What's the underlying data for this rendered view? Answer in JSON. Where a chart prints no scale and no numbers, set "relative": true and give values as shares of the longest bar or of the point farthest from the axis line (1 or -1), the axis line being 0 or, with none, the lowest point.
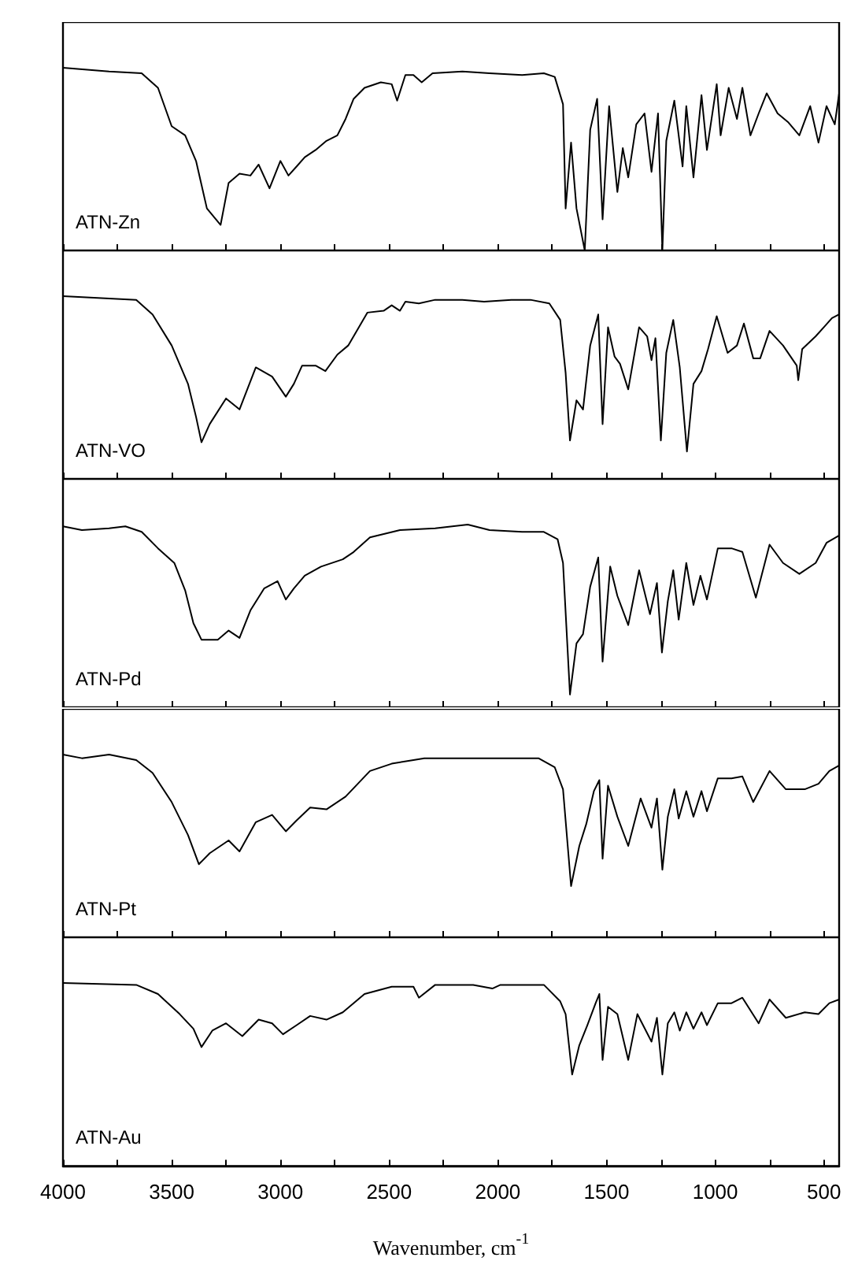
{
  "chart_data": [
    {
      "type": "line",
      "relative": true,
      "tick_labels": false,
      "xlim": [
        4000,
        430
      ],
      "xticks": [
        4000,
        {
          "value": 3750,
          "label": null
        },
        3500,
        {
          "value": 3250,
          "label": null
        },
        3000,
        {
          "value": 2750,
          "label": null
        },
        2500,
        {
          "value": 2250,
          "label": null
        },
        2000,
        {
          "value": 1750,
          "label": null
        },
        1500,
        {
          "value": 1250,
          "label": null
        },
        1000,
        {
          "value": 750,
          "label": null
        },
        500
      ],
      "x": [
        4000,
        3788,
        3638,
        3563,
        3500,
        3438,
        3388,
        3338,
        3275,
        3238,
        3188,
        3138,
        3100,
        3050,
        3000,
        2963,
        2925,
        2888,
        2838,
        2788,
        2738,
        2700,
        2663,
        2613,
        2538,
        2488,
        2463,
        2425,
        2388,
        2350,
        2300,
        2163,
        2038,
        1888,
        1788,
        1738,
        1700,
        1688,
        1663,
        1638,
        1600,
        1575,
        1543,
        1518,
        1488,
        1450,
        1425,
        1400,
        1363,
        1325,
        1293,
        1263,
        1243,
        1225,
        1188,
        1150,
        1133,
        1100,
        1063,
        1038,
        993,
        975,
        938,
        900,
        875,
        838,
        800,
        763,
        713,
        663,
        613,
        563,
        525,
        488,
        450,
        430
      ],
      "series": [
        {
          "name": "ATN-Zn",
          "color": "#000000",
          "values": [
            1.0,
            0.98,
            0.97,
            0.89,
            0.68,
            0.63,
            0.49,
            0.23,
            0.14,
            0.37,
            0.42,
            0.41,
            0.47,
            0.34,
            0.49,
            0.41,
            0.46,
            0.51,
            0.55,
            0.6,
            0.63,
            0.72,
            0.83,
            0.89,
            0.92,
            0.91,
            0.82,
            0.96,
            0.96,
            0.92,
            0.97,
            0.98,
            0.97,
            0.96,
            0.97,
            0.95,
            0.8,
            0.23,
            0.59,
            0.23,
            0.0,
            0.66,
            0.83,
            0.17,
            0.79,
            0.32,
            0.56,
            0.4,
            0.69,
            0.75,
            0.43,
            0.75,
            0.0,
            0.6,
            0.82,
            0.46,
            0.79,
            0.4,
            0.85,
            0.55,
            0.91,
            0.63,
            0.89,
            0.72,
            0.89,
            0.63,
            0.75,
            0.86,
            0.75,
            0.7,
            0.63,
            0.79,
            0.59,
            0.79,
            0.69,
            0.86
          ]
        }
      ]
    },
    {
      "type": "line",
      "relative": true,
      "tick_labels": false,
      "xlim": [
        4000,
        430
      ],
      "xticks": [
        4000,
        {
          "value": 3750,
          "label": null
        },
        3500,
        {
          "value": 3250,
          "label": null
        },
        3000,
        {
          "value": 2750,
          "label": null
        },
        2500,
        {
          "value": 2250,
          "label": null
        },
        2000,
        {
          "value": 1750,
          "label": null
        },
        1500,
        {
          "value": 1250,
          "label": null
        },
        1000,
        {
          "value": 750,
          "label": null
        },
        500
      ],
      "x": [
        4000,
        3663,
        3588,
        3500,
        3425,
        3388,
        3363,
        3325,
        3250,
        3188,
        3113,
        3038,
        2975,
        2938,
        2900,
        2838,
        2793,
        2738,
        2688,
        2600,
        2525,
        2488,
        2450,
        2425,
        2363,
        2288,
        2163,
        2063,
        1938,
        1850,
        1763,
        1713,
        1688,
        1668,
        1638,
        1608,
        1575,
        1538,
        1518,
        1493,
        1463,
        1438,
        1400,
        1350,
        1313,
        1293,
        1275,
        1250,
        1225,
        1193,
        1163,
        1130,
        1100,
        1063,
        1033,
        993,
        943,
        900,
        868,
        825,
        793,
        750,
        688,
        625,
        618,
        600,
        538,
        500,
        463,
        430
      ],
      "series": [
        {
          "name": "ATN-VO",
          "color": "#000000",
          "values": [
            1.0,
            0.98,
            0.9,
            0.73,
            0.52,
            0.34,
            0.2,
            0.3,
            0.44,
            0.38,
            0.61,
            0.56,
            0.45,
            0.52,
            0.62,
            0.62,
            0.59,
            0.68,
            0.73,
            0.91,
            0.92,
            0.95,
            0.92,
            0.97,
            0.96,
            0.98,
            0.98,
            0.97,
            0.98,
            0.98,
            0.96,
            0.87,
            0.58,
            0.21,
            0.43,
            0.38,
            0.73,
            0.9,
            0.3,
            0.83,
            0.67,
            0.63,
            0.49,
            0.83,
            0.78,
            0.65,
            0.77,
            0.21,
            0.69,
            0.87,
            0.61,
            0.15,
            0.52,
            0.59,
            0.71,
            0.89,
            0.69,
            0.73,
            0.85,
            0.66,
            0.66,
            0.81,
            0.73,
            0.62,
            0.54,
            0.71,
            0.78,
            0.83,
            0.88,
            0.9
          ]
        }
      ]
    },
    {
      "type": "line",
      "relative": true,
      "tick_labels": false,
      "xlim": [
        4000,
        430
      ],
      "xticks": [
        4000,
        {
          "value": 3750,
          "label": null
        },
        3500,
        {
          "value": 3250,
          "label": null
        },
        3000,
        {
          "value": 2750,
          "label": null
        },
        2500,
        {
          "value": 2250,
          "label": null
        },
        2000,
        {
          "value": 1750,
          "label": null
        },
        1500,
        {
          "value": 1250,
          "label": null
        },
        1000,
        {
          "value": 750,
          "label": null
        },
        500
      ],
      "x": [
        4000,
        3913,
        3788,
        3713,
        3638,
        3563,
        3488,
        3438,
        3400,
        3363,
        3288,
        3238,
        3188,
        3138,
        3075,
        3013,
        2975,
        2938,
        2888,
        2813,
        2713,
        2663,
        2588,
        2450,
        2288,
        2138,
        2038,
        1888,
        1788,
        1725,
        1700,
        1668,
        1638,
        1608,
        1575,
        1538,
        1518,
        1483,
        1450,
        1400,
        1350,
        1300,
        1268,
        1245,
        1218,
        1193,
        1168,
        1133,
        1100,
        1068,
        1038,
        988,
        925,
        875,
        813,
        750,
        688,
        613,
        538,
        488,
        430
      ],
      "series": [
        {
          "name": "ATN-Pd",
          "color": "#000000",
          "values": [
            0.99,
            0.97,
            0.98,
            0.99,
            0.96,
            0.87,
            0.79,
            0.64,
            0.46,
            0.37,
            0.37,
            0.42,
            0.38,
            0.53,
            0.65,
            0.69,
            0.59,
            0.65,
            0.72,
            0.77,
            0.81,
            0.85,
            0.93,
            0.97,
            0.98,
            1.0,
            0.97,
            0.96,
            0.96,
            0.92,
            0.79,
            0.07,
            0.35,
            0.4,
            0.66,
            0.82,
            0.25,
            0.77,
            0.61,
            0.45,
            0.75,
            0.51,
            0.68,
            0.3,
            0.58,
            0.75,
            0.48,
            0.79,
            0.56,
            0.72,
            0.59,
            0.87,
            0.87,
            0.85,
            0.6,
            0.89,
            0.79,
            0.73,
            0.79,
            0.9,
            0.94
          ]
        }
      ]
    },
    {
      "type": "line",
      "relative": true,
      "tick_labels": false,
      "xlim": [
        4000,
        430
      ],
      "xticks": [
        4000,
        {
          "value": 3750,
          "label": null
        },
        3500,
        {
          "value": 3250,
          "label": null
        },
        3000,
        {
          "value": 2750,
          "label": null
        },
        2500,
        {
          "value": 2250,
          "label": null
        },
        2000,
        {
          "value": 1750,
          "label": null
        },
        1500,
        {
          "value": 1250,
          "label": null
        },
        1000,
        {
          "value": 750,
          "label": null
        },
        500
      ],
      "x": [
        4000,
        3913,
        3788,
        3663,
        3588,
        3500,
        3425,
        3375,
        3325,
        3238,
        3188,
        3113,
        3038,
        2975,
        2925,
        2863,
        2788,
        2700,
        2588,
        2488,
        2388,
        2338,
        2163,
        1813,
        1738,
        1700,
        1663,
        1625,
        1593,
        1558,
        1533,
        1518,
        1493,
        1450,
        1400,
        1343,
        1293,
        1268,
        1243,
        1218,
        1188,
        1168,
        1133,
        1100,
        1063,
        1038,
        988,
        925,
        875,
        825,
        750,
        675,
        588,
        525,
        475,
        430
      ],
      "series": [
        {
          "name": "ATN-Pt",
          "color": "#000000",
          "values": [
            1.0,
            0.98,
            1.0,
            0.97,
            0.9,
            0.74,
            0.56,
            0.4,
            0.46,
            0.53,
            0.47,
            0.63,
            0.67,
            0.58,
            0.64,
            0.71,
            0.7,
            0.77,
            0.91,
            0.95,
            0.97,
            0.98,
            0.98,
            0.98,
            0.93,
            0.81,
            0.28,
            0.5,
            0.62,
            0.8,
            0.86,
            0.43,
            0.83,
            0.66,
            0.5,
            0.76,
            0.6,
            0.76,
            0.37,
            0.66,
            0.81,
            0.65,
            0.8,
            0.66,
            0.8,
            0.69,
            0.87,
            0.87,
            0.88,
            0.74,
            0.91,
            0.81,
            0.81,
            0.84,
            0.91,
            0.94
          ]
        }
      ]
    },
    {
      "type": "line",
      "relative": true,
      "tick_labels": "x",
      "xlabel": "Wavenumber, cm$^{-1}$",
      "xlim": [
        4000,
        430
      ],
      "xticks": [
        4000,
        {
          "value": 3750,
          "label": null
        },
        3500,
        {
          "value": 3250,
          "label": null
        },
        3000,
        {
          "value": 2750,
          "label": null
        },
        2500,
        {
          "value": 2250,
          "label": null
        },
        2000,
        {
          "value": 1750,
          "label": null
        },
        1500,
        {
          "value": 1250,
          "label": null
        },
        1000,
        {
          "value": 750,
          "label": null
        },
        500
      ],
      "x": [
        4000,
        3663,
        3563,
        3463,
        3400,
        3363,
        3313,
        3250,
        3175,
        3100,
        3038,
        2988,
        2925,
        2863,
        2788,
        2713,
        2613,
        2488,
        2388,
        2363,
        2288,
        2113,
        2025,
        1988,
        1788,
        1713,
        1688,
        1658,
        1625,
        1588,
        1550,
        1533,
        1518,
        1493,
        1450,
        1400,
        1358,
        1293,
        1268,
        1243,
        1218,
        1188,
        1163,
        1133,
        1100,
        1063,
        1038,
        988,
        925,
        875,
        800,
        750,
        675,
        588,
        525,
        475,
        430
      ],
      "series": [
        {
          "name": "ATN-Au",
          "color": "#000000",
          "values": [
            1.0,
            0.99,
            0.94,
            0.83,
            0.75,
            0.65,
            0.74,
            0.78,
            0.71,
            0.8,
            0.78,
            0.72,
            0.77,
            0.82,
            0.8,
            0.84,
            0.94,
            0.98,
            0.98,
            0.92,
            0.99,
            0.99,
            0.97,
            0.99,
            0.99,
            0.9,
            0.83,
            0.5,
            0.66,
            0.77,
            0.89,
            0.94,
            0.58,
            0.87,
            0.83,
            0.58,
            0.83,
            0.68,
            0.81,
            0.5,
            0.78,
            0.84,
            0.74,
            0.84,
            0.75,
            0.84,
            0.77,
            0.89,
            0.89,
            0.92,
            0.78,
            0.91,
            0.81,
            0.84,
            0.83,
            0.89,
            0.91
          ]
        }
      ]
    }
  ]
}
